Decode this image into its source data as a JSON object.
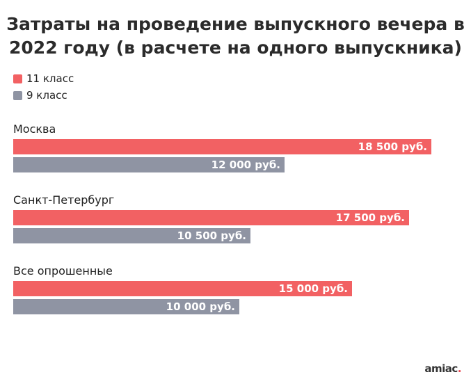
{
  "colors": {
    "s11": "#f26163",
    "s9": "#8f94a3"
  },
  "chart_data": {
    "type": "bar",
    "orientation": "horizontal",
    "title": "Затраты на проведение выпускного вечера в 2022 году (в расчете на одного выпускника)",
    "categories": [
      "Москва",
      "Санкт-Петербург",
      "Все опрошенные"
    ],
    "series": [
      {
        "name": "11 класс",
        "values": [
          18500,
          17500,
          15000
        ],
        "labels": [
          "18 500 руб.",
          "17 500 руб.",
          "15 000 руб."
        ]
      },
      {
        "name": "9 класс",
        "values": [
          12000,
          10500,
          10000
        ],
        "labels": [
          "12 000 руб.",
          "10 500 руб.",
          "10 000 руб."
        ]
      }
    ],
    "legend": "top-left",
    "grid": false
  },
  "logo": {
    "text": "amiac",
    "dot": "."
  }
}
